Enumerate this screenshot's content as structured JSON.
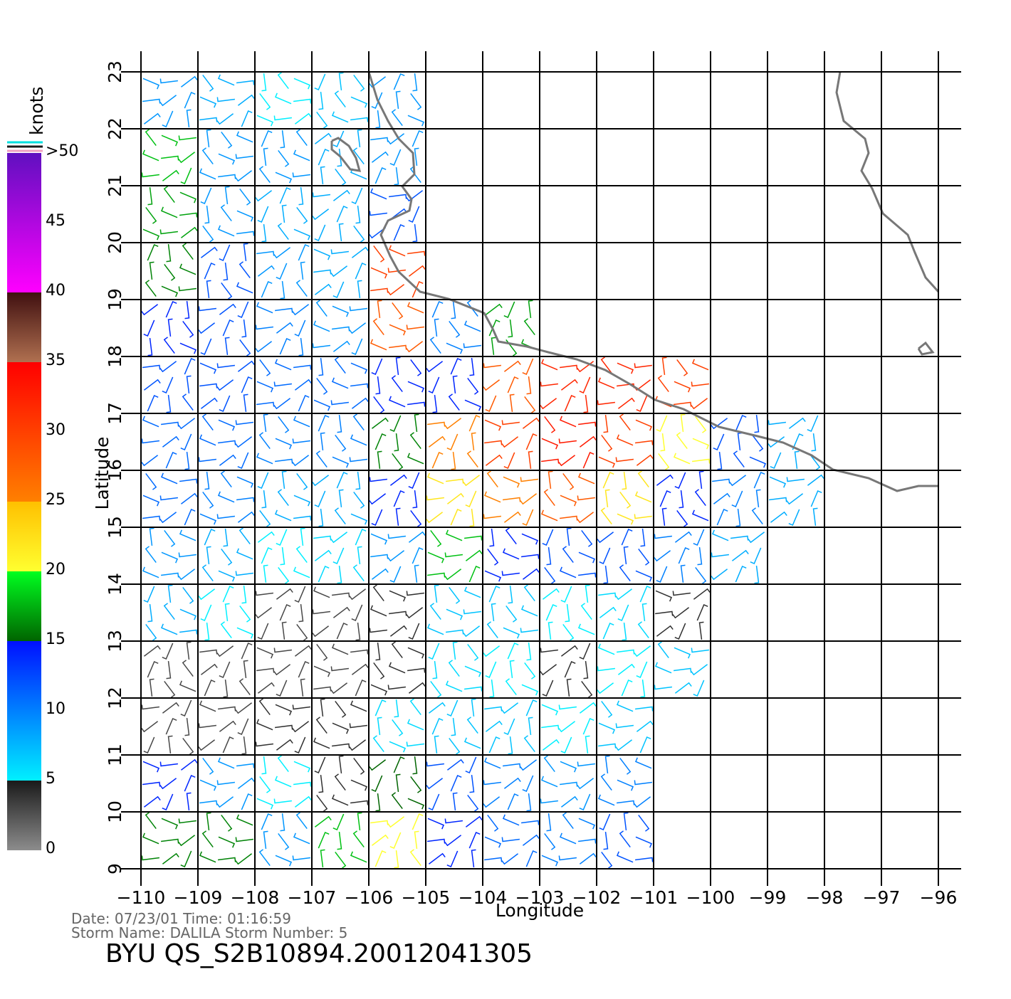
{
  "chart_data": {
    "type": "wind-barb-map",
    "title": "BYU QS_S2B10894.20012041305",
    "info_lines": [
      "Date: 07/23/01   Time: 01:16:59",
      "Storm Name: DALILA   Storm Number: 5"
    ],
    "xlabel": "Longitude",
    "ylabel": "Latitude",
    "xlim": [
      -110,
      -96
    ],
    "ylim": [
      9,
      23
    ],
    "xticks": [
      {
        "value": -110,
        "label": "−110"
      },
      {
        "value": -109,
        "label": "−109"
      },
      {
        "value": -108,
        "label": "−108"
      },
      {
        "value": -107,
        "label": "−107"
      },
      {
        "value": -106,
        "label": "−106"
      },
      {
        "value": -105,
        "label": "−105"
      },
      {
        "value": -104,
        "label": "−104"
      },
      {
        "value": -103,
        "label": "−103"
      },
      {
        "value": -102,
        "label": "−102"
      },
      {
        "value": -101,
        "label": "−101"
      },
      {
        "value": -100,
        "label": "−100"
      },
      {
        "value": -99,
        "label": "−99"
      },
      {
        "value": -98,
        "label": "−98"
      },
      {
        "value": -97,
        "label": "−97"
      },
      {
        "value": -96,
        "label": "−96"
      }
    ],
    "yticks": [
      9,
      10,
      11,
      12,
      13,
      14,
      15,
      16,
      17,
      18,
      19,
      20,
      21,
      22,
      23
    ],
    "grid": true,
    "colorbar": {
      "label": "knots",
      "lim": [
        0,
        50
      ],
      "ticks": [
        0,
        5,
        10,
        15,
        20,
        25,
        30,
        35,
        40,
        45,
        {
          "value": 50,
          "label": ">50"
        }
      ],
      "stops": [
        {
          "value": 0,
          "color": "#8c8c8c"
        },
        {
          "value": 5,
          "color": "#1a1a1a"
        },
        {
          "value": 5,
          "color": "#00f0ff"
        },
        {
          "value": 15,
          "color": "#0010ff"
        },
        {
          "value": 15,
          "color": "#006400"
        },
        {
          "value": 20,
          "color": "#00ff20"
        },
        {
          "value": 20,
          "color": "#ffff30"
        },
        {
          "value": 25,
          "color": "#ffc000"
        },
        {
          "value": 25,
          "color": "#ff8000"
        },
        {
          "value": 35,
          "color": "#ff0000"
        },
        {
          "value": 35,
          "color": "#b07050"
        },
        {
          "value": 40,
          "color": "#401010"
        },
        {
          "value": 40,
          "color": "#ff00ff"
        },
        {
          "value": 50,
          "color": "#6010c0"
        }
      ]
    },
    "wind": {
      "lon": [
        -109.5,
        -108.5,
        -107.5,
        -106.5,
        -105.5,
        -104.5,
        -103.5,
        -102.5,
        -101.5,
        -100.5,
        -99.5,
        -98.5,
        -97.5,
        -96.5
      ],
      "lat": [
        22.5,
        21.5,
        20.5,
        19.5,
        18.5,
        17.5,
        16.5,
        15.5,
        14.5,
        13.5,
        12.5,
        11.5,
        10.5,
        9.5
      ],
      "speed": [
        [
          9,
          8,
          5,
          7,
          9,
          null,
          null,
          null,
          null,
          null,
          null,
          null,
          null,
          null
        ],
        [
          18,
          9,
          9,
          8,
          9,
          null,
          null,
          null,
          null,
          null,
          null,
          null,
          null,
          null
        ],
        [
          17,
          9,
          8,
          8,
          12,
          null,
          null,
          null,
          null,
          null,
          null,
          null,
          null,
          null
        ],
        [
          16,
          12,
          9,
          8,
          30,
          null,
          null,
          null,
          null,
          null,
          null,
          null,
          null,
          null
        ],
        [
          14,
          12,
          10,
          9,
          28,
          10,
          17,
          null,
          null,
          null,
          null,
          null,
          null,
          null
        ],
        [
          12,
          12,
          11,
          11,
          14,
          14,
          28,
          32,
          32,
          30,
          null,
          null,
          null,
          null
        ],
        [
          11,
          11,
          10,
          10,
          16,
          25,
          30,
          33,
          30,
          20,
          12,
          8,
          null,
          null
        ],
        [
          11,
          10,
          8,
          8,
          14,
          22,
          25,
          28,
          22,
          14,
          10,
          8,
          null,
          null
        ],
        [
          9,
          8,
          5,
          6,
          9,
          18,
          14,
          12,
          12,
          10,
          8,
          null,
          null,
          null
        ],
        [
          8,
          5,
          3,
          3,
          4,
          7,
          7,
          5,
          6,
          4,
          null,
          null,
          null,
          null
        ],
        [
          3,
          3,
          3,
          3,
          4,
          6,
          5,
          4,
          5,
          7,
          null,
          null,
          null,
          null
        ],
        [
          3,
          3,
          4,
          4,
          6,
          7,
          7,
          5,
          7,
          null,
          null,
          null,
          null,
          null
        ],
        [
          14,
          9,
          5,
          4,
          15,
          12,
          10,
          9,
          10,
          null,
          null,
          null,
          null,
          null
        ],
        [
          16,
          16,
          9,
          18,
          20,
          14,
          11,
          10,
          12,
          null,
          null,
          null,
          null,
          null
        ]
      ]
    }
  }
}
